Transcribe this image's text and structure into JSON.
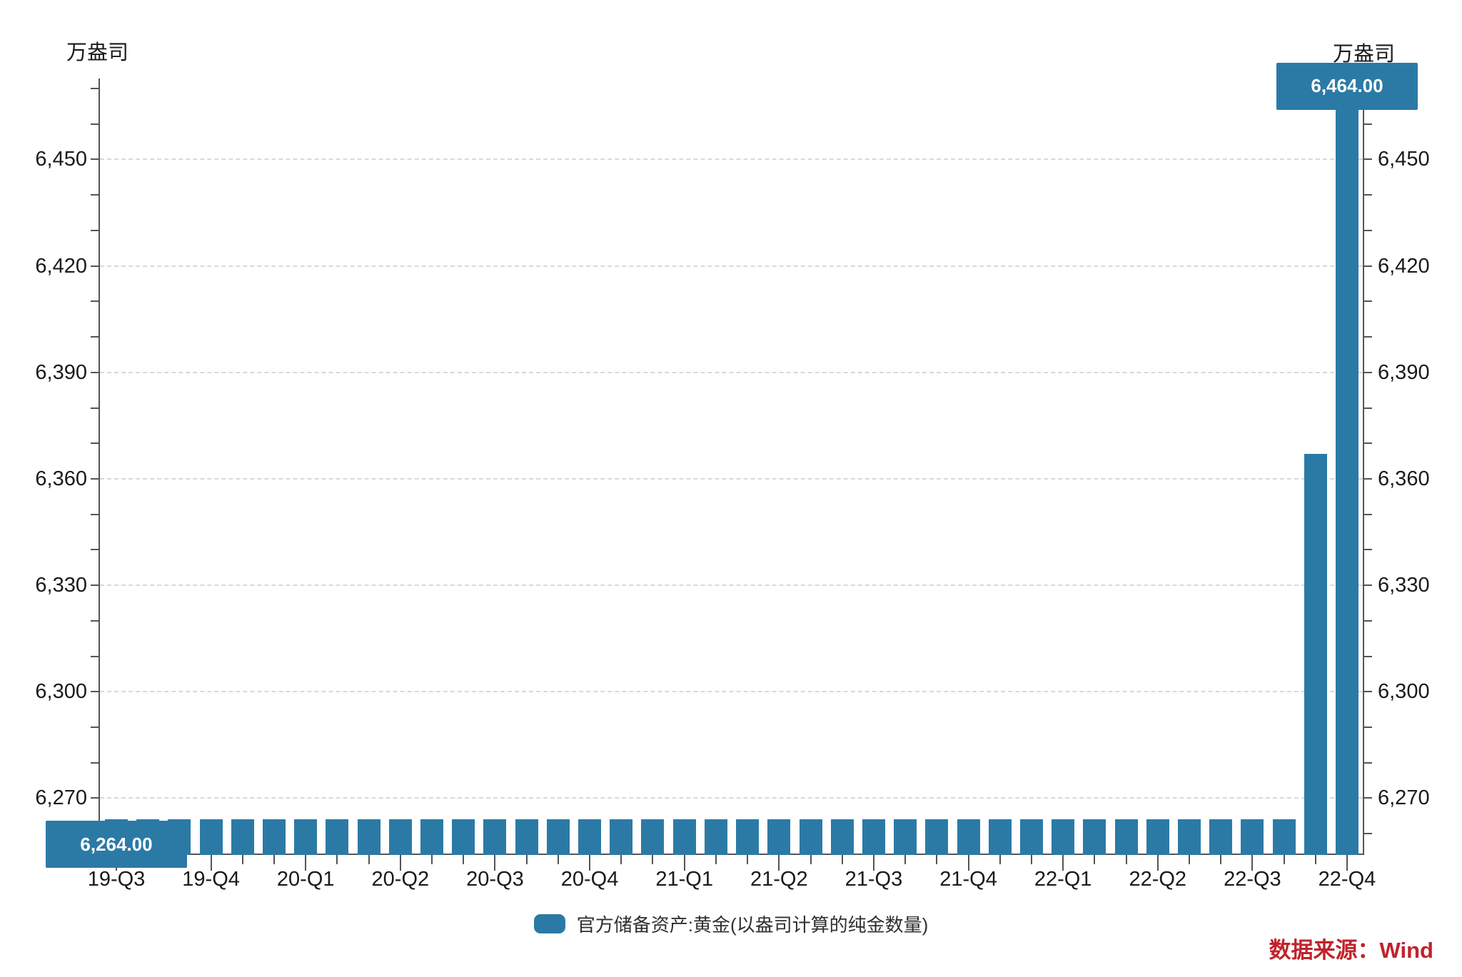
{
  "colors": {
    "bar": "#2b7aa6",
    "axis": "#555555",
    "grid": "#d9d9d9",
    "text": "#1a1a1a",
    "source_text": "#c0232c",
    "annotation_text": "#ffffff",
    "background": "#ffffff"
  },
  "source": {
    "text": "数据来源：Wind"
  },
  "chart_data": {
    "type": "bar",
    "title": "",
    "unit": "万盎司",
    "unit_label_left": "万盎司",
    "unit_label_right": "万盎司",
    "series": [
      {
        "name": "官方储备资产:黄金(以盎司计算的纯金数量)",
        "values": [
          6264,
          6264,
          6264,
          6264,
          6264,
          6264,
          6264,
          6264,
          6264,
          6264,
          6264,
          6264,
          6264,
          6264,
          6264,
          6264,
          6264,
          6264,
          6264,
          6264,
          6264,
          6264,
          6264,
          6264,
          6264,
          6264,
          6264,
          6264,
          6264,
          6264,
          6264,
          6264,
          6264,
          6264,
          6264,
          6264,
          6264,
          6264,
          6367,
          6464
        ]
      }
    ],
    "x_tick_labels": [
      "19-Q3",
      "19-Q4",
      "20-Q1",
      "20-Q2",
      "20-Q3",
      "20-Q4",
      "21-Q1",
      "21-Q2",
      "21-Q3",
      "21-Q4",
      "22-Q1",
      "22-Q2",
      "22-Q3",
      "22-Q4"
    ],
    "x_label_every_n_bars": 3,
    "y_axis": {
      "min": 6254,
      "max": 6472,
      "major_ticks": [
        6270,
        6300,
        6330,
        6360,
        6390,
        6420,
        6450
      ],
      "major_tick_labels": [
        "6,270",
        "6,300",
        "6,330",
        "6,360",
        "6,390",
        "6,420",
        "6,450"
      ],
      "minor_step": 10,
      "minor_min": 6260,
      "minor_max": 6470,
      "grid": "dashed",
      "dual_axis": true
    },
    "annotations": [
      {
        "bar_index": 0,
        "text": "6,264.00",
        "position": "over"
      },
      {
        "bar_index": 39,
        "text": "6,464.00",
        "position": "above"
      }
    ],
    "legend_position": "bottom-center"
  }
}
